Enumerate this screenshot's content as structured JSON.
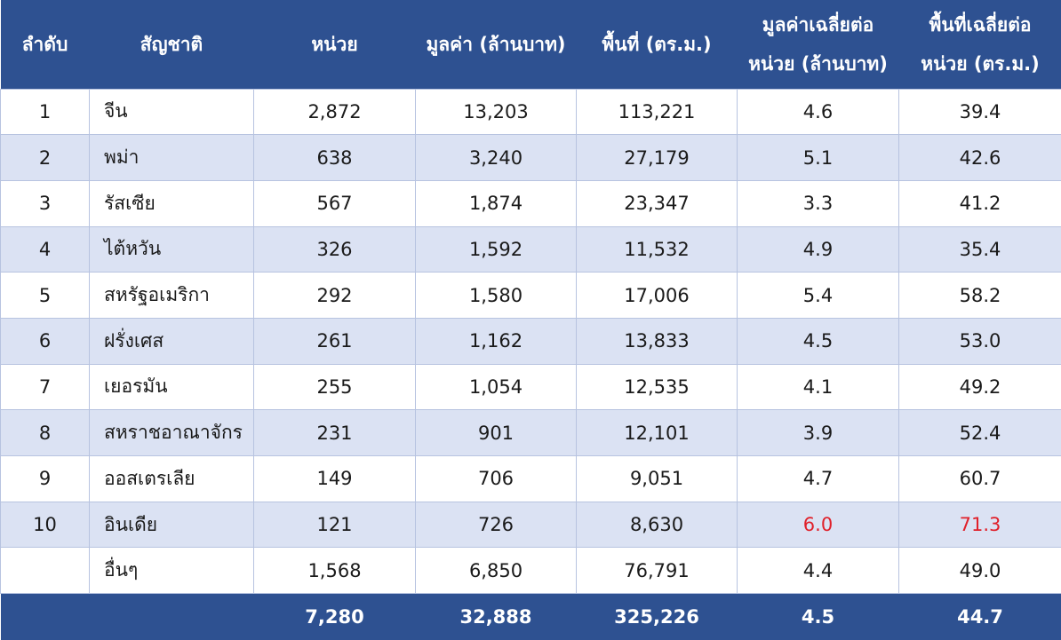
{
  "headers": [
    {
      "line1": "ลำดับ",
      "line2": ""
    },
    {
      "line1": "สัญชาติ",
      "line2": ""
    },
    {
      "line1": "หน่วย",
      "line2": ""
    },
    {
      "line1": "มูลค่า (ล้านบาท)",
      "line2": ""
    },
    {
      "line1": "พื้นที่ (ตร.ม.)",
      "line2": ""
    },
    {
      "line1": "มูลค่าเฉลี่ยต่อ",
      "line2": "หน่วย (ล้านบาท)"
    },
    {
      "line1": "พื้นที่เฉลี่ยต่อ",
      "line2": "หน่วย (ตร.ม.)"
    }
  ],
  "rows": [
    {
      "rank": "1",
      "nationality": "จีน",
      "units": "2,872",
      "value": "13,203",
      "area": "113,221",
      "avg_value": "4.6",
      "avg_area": "39.4",
      "highlight": false
    },
    {
      "rank": "2",
      "nationality": "พม่า",
      "units": "638",
      "value": "3,240",
      "area": "27,179",
      "avg_value": "5.1",
      "avg_area": "42.6",
      "highlight": false
    },
    {
      "rank": "3",
      "nationality": "รัสเซีย",
      "units": "567",
      "value": "1,874",
      "area": "23,347",
      "avg_value": "3.3",
      "avg_area": "41.2",
      "highlight": false
    },
    {
      "rank": "4",
      "nationality": "ไต้หวัน",
      "units": "326",
      "value": "1,592",
      "area": "11,532",
      "avg_value": "4.9",
      "avg_area": "35.4",
      "highlight": false
    },
    {
      "rank": "5",
      "nationality": "สหรัฐอเมริกา",
      "units": "292",
      "value": "1,580",
      "area": "17,006",
      "avg_value": "5.4",
      "avg_area": "58.2",
      "highlight": false
    },
    {
      "rank": "6",
      "nationality": "ฝรั่งเศส",
      "units": "261",
      "value": "1,162",
      "area": "13,833",
      "avg_value": "4.5",
      "avg_area": "53.0",
      "highlight": false
    },
    {
      "rank": "7",
      "nationality": "เยอรมัน",
      "units": "255",
      "value": "1,054",
      "area": "12,535",
      "avg_value": "4.1",
      "avg_area": "49.2",
      "highlight": false
    },
    {
      "rank": "8",
      "nationality": "สหราชอาณาจักร",
      "units": "231",
      "value": "901",
      "area": "12,101",
      "avg_value": "3.9",
      "avg_area": "52.4",
      "highlight": false
    },
    {
      "rank": "9",
      "nationality": "ออสเตรเลีย",
      "units": "149",
      "value": "706",
      "area": "9,051",
      "avg_value": "4.7",
      "avg_area": "60.7",
      "highlight": false
    },
    {
      "rank": "10",
      "nationality": "อินเดีย",
      "units": "121",
      "value": "726",
      "area": "8,630",
      "avg_value": "6.0",
      "avg_area": "71.3",
      "highlight": true
    },
    {
      "rank": "",
      "nationality": "อื่นๆ",
      "units": "1,568",
      "value": "6,850",
      "area": "76,791",
      "avg_value": "4.4",
      "avg_area": "49.0",
      "highlight": false
    }
  ],
  "total": {
    "rank": "",
    "nationality": "",
    "units": "7,280",
    "value": "32,888",
    "area": "325,226",
    "avg_value": "4.5",
    "avg_area": "44.7"
  },
  "colors": {
    "header_bg": "#2e5191",
    "stripe": "#dbe2f3",
    "highlight": "#e0202a"
  }
}
